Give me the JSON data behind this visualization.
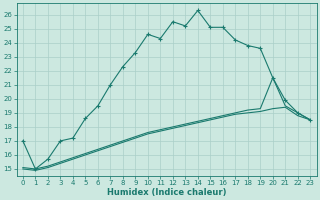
{
  "xlabel": "Humidex (Indice chaleur)",
  "bg_color": "#cce8e0",
  "grid_color": "#aacfc8",
  "line_color": "#1a7a6e",
  "xlim": [
    -0.5,
    23.5
  ],
  "ylim": [
    14.5,
    26.8
  ],
  "yticks": [
    15,
    16,
    17,
    18,
    19,
    20,
    21,
    22,
    23,
    24,
    25,
    26
  ],
  "xticks": [
    0,
    1,
    2,
    3,
    4,
    5,
    6,
    7,
    8,
    9,
    10,
    11,
    12,
    13,
    14,
    15,
    16,
    17,
    18,
    19,
    20,
    21,
    22,
    23
  ],
  "curve1_x": [
    0,
    1,
    2,
    3,
    4,
    5,
    6,
    7,
    8,
    9,
    10,
    11,
    12,
    13,
    14,
    15,
    16,
    17,
    18,
    19,
    20,
    21,
    22,
    23
  ],
  "curve1_y": [
    17.0,
    15.0,
    15.7,
    17.0,
    17.2,
    18.6,
    19.5,
    21.0,
    22.3,
    23.3,
    24.6,
    24.3,
    25.5,
    25.2,
    26.3,
    25.1,
    25.1,
    24.2,
    23.8,
    23.6,
    21.5,
    19.9,
    19.0,
    18.5
  ],
  "curve2_x": [
    0,
    1,
    2,
    3,
    4,
    5,
    6,
    7,
    8,
    9,
    10,
    11,
    12,
    13,
    14,
    15,
    16,
    17,
    18,
    19,
    20,
    21,
    22,
    23
  ],
  "curve2_y": [
    15.1,
    15.0,
    15.2,
    15.5,
    15.8,
    16.1,
    16.4,
    16.7,
    17.0,
    17.3,
    17.6,
    17.8,
    18.0,
    18.2,
    18.4,
    18.6,
    18.8,
    19.0,
    19.2,
    19.3,
    21.5,
    19.5,
    19.0,
    18.5
  ],
  "curve3_x": [
    0,
    1,
    2,
    3,
    4,
    5,
    6,
    7,
    8,
    9,
    10,
    11,
    12,
    13,
    14,
    15,
    16,
    17,
    18,
    19,
    20,
    21,
    22,
    23
  ],
  "curve3_y": [
    15.0,
    14.9,
    15.1,
    15.4,
    15.7,
    16.0,
    16.3,
    16.6,
    16.9,
    17.2,
    17.5,
    17.7,
    17.9,
    18.1,
    18.3,
    18.5,
    18.7,
    18.9,
    19.0,
    19.1,
    19.3,
    19.4,
    18.8,
    18.5
  ]
}
